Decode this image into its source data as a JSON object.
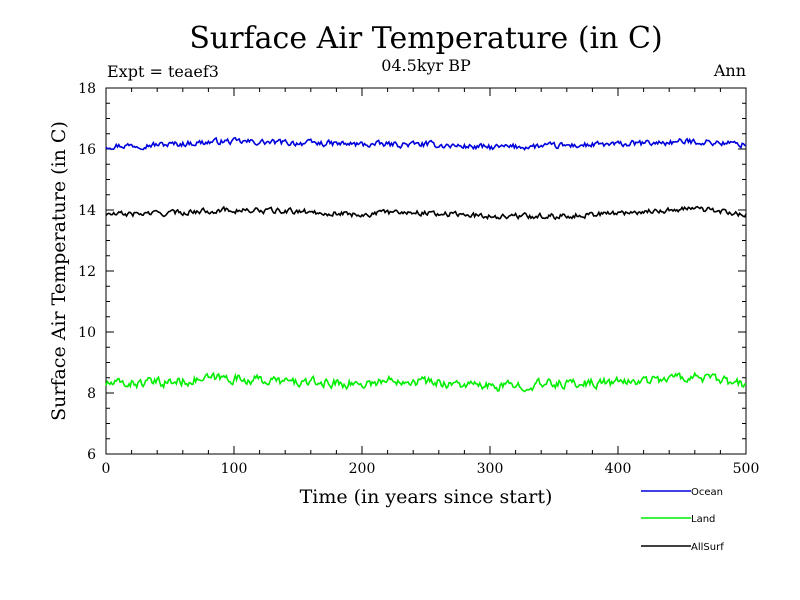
{
  "chart_data": {
    "type": "line",
    "title": "Surface Air Temperature (in C)",
    "subtitle": "04.5kyr BP",
    "experiment": "Expt = teaef3",
    "season": "Ann",
    "xlabel": "Time (in years since start)",
    "ylabel": "Surface Air Temperature (in C)",
    "xlim": [
      0,
      500
    ],
    "ylim": [
      6,
      18
    ],
    "xticks": [
      0,
      100,
      200,
      300,
      400,
      500
    ],
    "yticks": [
      6,
      8,
      10,
      12,
      14,
      16,
      18
    ],
    "legend_position": "bottom-right",
    "series": [
      {
        "name": "Ocean",
        "color": "#0000dd",
        "mean": 16.15,
        "noise": 0.11,
        "anchors": [
          [
            0,
            16.1
          ],
          [
            50,
            16.15
          ],
          [
            90,
            16.25
          ],
          [
            150,
            16.2
          ],
          [
            200,
            16.15
          ],
          [
            250,
            16.15
          ],
          [
            300,
            16.05
          ],
          [
            350,
            16.1
          ],
          [
            400,
            16.15
          ],
          [
            460,
            16.25
          ],
          [
            500,
            16.15
          ]
        ]
      },
      {
        "name": "Land",
        "color": "#00ee00",
        "mean": 8.3,
        "noise": 0.17,
        "anchors": [
          [
            0,
            8.3
          ],
          [
            50,
            8.35
          ],
          [
            90,
            8.5
          ],
          [
            150,
            8.35
          ],
          [
            200,
            8.3
          ],
          [
            230,
            8.45
          ],
          [
            300,
            8.2
          ],
          [
            350,
            8.3
          ],
          [
            400,
            8.35
          ],
          [
            460,
            8.55
          ],
          [
            500,
            8.25
          ]
        ]
      },
      {
        "name": "AllSurf",
        "color": "#000000",
        "mean": 13.85,
        "noise": 0.1,
        "anchors": [
          [
            0,
            13.85
          ],
          [
            50,
            13.9
          ],
          [
            90,
            14.0
          ],
          [
            150,
            13.95
          ],
          [
            200,
            13.85
          ],
          [
            230,
            13.95
          ],
          [
            300,
            13.8
          ],
          [
            350,
            13.8
          ],
          [
            400,
            13.9
          ],
          [
            460,
            14.05
          ],
          [
            500,
            13.85
          ]
        ]
      }
    ]
  }
}
